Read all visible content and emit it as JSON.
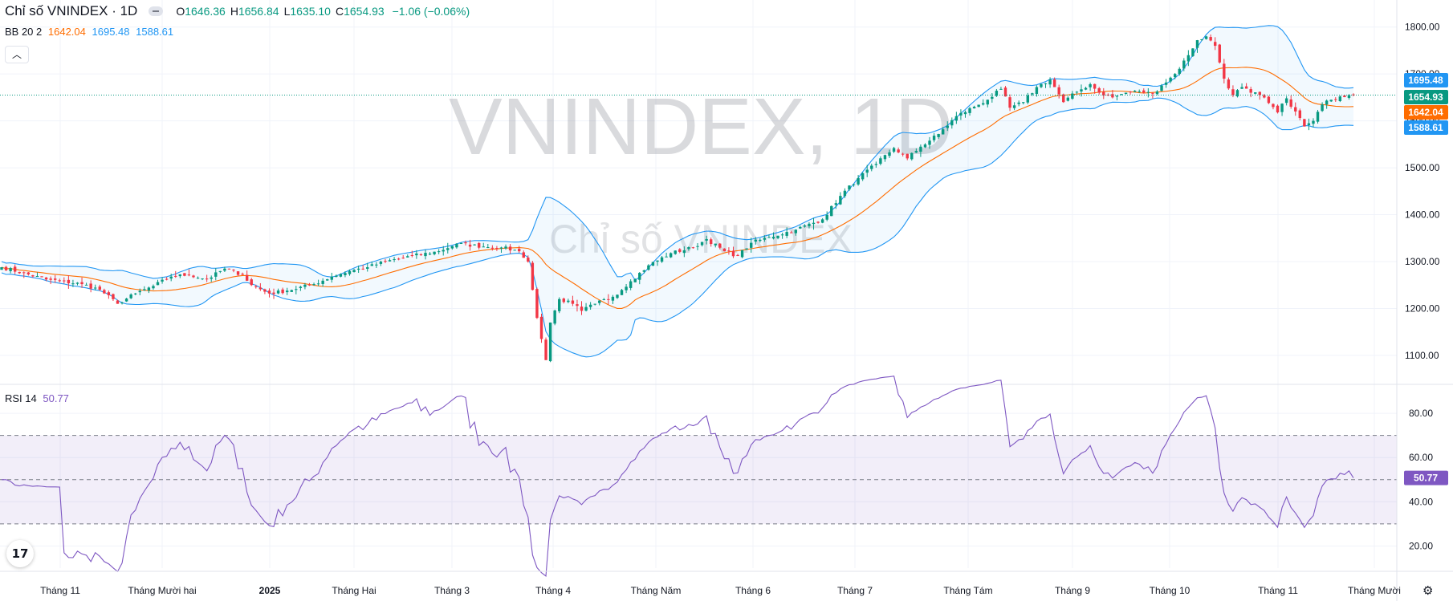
{
  "header": {
    "title": "Chỉ số VNINDEX · 1D",
    "ohlc": [
      {
        "key": "O",
        "value": "1646.36"
      },
      {
        "key": "H",
        "value": "1656.84"
      },
      {
        "key": "L",
        "value": "1635.10"
      },
      {
        "key": "C",
        "value": "1654.93"
      }
    ],
    "change": "−1.06 (−0.06%)"
  },
  "bb_legend": {
    "label": "BB 20 2",
    "basis": "1642.04",
    "upper": "1695.48",
    "lower": "1588.61"
  },
  "rsi_legend": {
    "label": "RSI 14",
    "value": "50.77"
  },
  "watermark": {
    "main": "VNINDEX, 1D",
    "sub": "Chỉ số VNINDEX"
  },
  "colors": {
    "up": "#089981",
    "down": "#f23645",
    "bb_basis": "#ff6d00",
    "bb_band": "#2196f3",
    "rsi": "#7e57c2"
  },
  "chart_data": [
    {
      "type": "candlestick",
      "title": "VNINDEX, 1D",
      "y_ticks": [
        1100,
        1200,
        1300,
        1400,
        1500,
        1600,
        1700,
        1800
      ],
      "y_tick_labels": [
        "1100.00",
        "1200.00",
        "1300.00",
        "1400.00",
        "1500.00",
        "1600.00",
        "1700.00",
        "1800.00"
      ],
      "ylim": [
        1040,
        1820
      ],
      "x_tick_labels": [
        "Tháng 11",
        "Tháng Mười hai",
        "2025",
        "Tháng Hai",
        "Tháng 3",
        "Tháng 4",
        "Tháng Năm",
        "Tháng 6",
        "Tháng 7",
        "Tháng Tám",
        "Tháng 9",
        "Tháng 10",
        "Tháng 11",
        "Tháng Mười"
      ],
      "close_anchors": [
        [
          0,
          1288
        ],
        [
          10,
          1262
        ],
        [
          18,
          1252
        ],
        [
          22,
          1240
        ],
        [
          26,
          1210
        ],
        [
          30,
          1232
        ],
        [
          34,
          1248
        ],
        [
          38,
          1268
        ],
        [
          42,
          1272
        ],
        [
          46,
          1262
        ],
        [
          50,
          1285
        ],
        [
          54,
          1272
        ],
        [
          56,
          1250
        ],
        [
          60,
          1232
        ],
        [
          64,
          1238
        ],
        [
          70,
          1252
        ],
        [
          74,
          1268
        ],
        [
          78,
          1280
        ],
        [
          82,
          1288
        ],
        [
          86,
          1300
        ],
        [
          92,
          1312
        ],
        [
          98,
          1322
        ],
        [
          102,
          1338
        ],
        [
          108,
          1332
        ],
        [
          112,
          1330
        ],
        [
          116,
          1322
        ],
        [
          118,
          1300
        ],
        [
          120,
          1180
        ],
        [
          121,
          1135
        ],
        [
          122,
          1090
        ],
        [
          123,
          1170
        ],
        [
          125,
          1220
        ],
        [
          128,
          1210
        ],
        [
          130,
          1195
        ],
        [
          133,
          1210
        ],
        [
          137,
          1225
        ],
        [
          141,
          1258
        ],
        [
          145,
          1292
        ],
        [
          150,
          1318
        ],
        [
          155,
          1330
        ],
        [
          158,
          1348
        ],
        [
          162,
          1322
        ],
        [
          165,
          1312
        ],
        [
          168,
          1340
        ],
        [
          172,
          1352
        ],
        [
          178,
          1368
        ],
        [
          184,
          1390
        ],
        [
          188,
          1440
        ],
        [
          192,
          1478
        ],
        [
          196,
          1508
        ],
        [
          200,
          1542
        ],
        [
          203,
          1520
        ],
        [
          206,
          1545
        ],
        [
          210,
          1572
        ],
        [
          214,
          1610
        ],
        [
          218,
          1630
        ],
        [
          221,
          1645
        ],
        [
          224,
          1668
        ],
        [
          226,
          1628
        ],
        [
          229,
          1640
        ],
        [
          232,
          1672
        ],
        [
          235,
          1688
        ],
        [
          238,
          1640
        ],
        [
          241,
          1662
        ],
        [
          244,
          1678
        ],
        [
          246,
          1660
        ],
        [
          249,
          1650
        ],
        [
          252,
          1660
        ],
        [
          255,
          1663
        ],
        [
          258,
          1658
        ],
        [
          260,
          1675
        ],
        [
          263,
          1700
        ],
        [
          266,
          1740
        ],
        [
          268,
          1772
        ],
        [
          270,
          1780
        ],
        [
          272,
          1760
        ],
        [
          274,
          1690
        ],
        [
          276,
          1655
        ],
        [
          278,
          1672
        ],
        [
          280,
          1660
        ],
        [
          282,
          1655
        ],
        [
          284,
          1638
        ],
        [
          286,
          1618
        ],
        [
          288,
          1648
        ],
        [
          290,
          1620
        ],
        [
          292,
          1588
        ],
        [
          294,
          1600
        ],
        [
          296,
          1635
        ],
        [
          298,
          1645
        ],
        [
          300,
          1652
        ],
        [
          302,
          1655
        ],
        [
          303,
          1654.93
        ]
      ],
      "indicator": {
        "name": "BB 20 2",
        "basis_last": 1642.04,
        "upper_last": 1695.48,
        "lower_last": 1588.61
      },
      "last_price": 1654.93
    },
    {
      "type": "line",
      "name": "RSI 14",
      "y_ticks": [
        20,
        40,
        60,
        80
      ],
      "y_tick_labels": [
        "20.00",
        "40.00",
        "60.00",
        "80.00"
      ],
      "ylim": [
        10,
        92
      ],
      "bands": {
        "upper": 70,
        "middle": 50,
        "lower": 30
      },
      "last_value": 50.77
    }
  ]
}
